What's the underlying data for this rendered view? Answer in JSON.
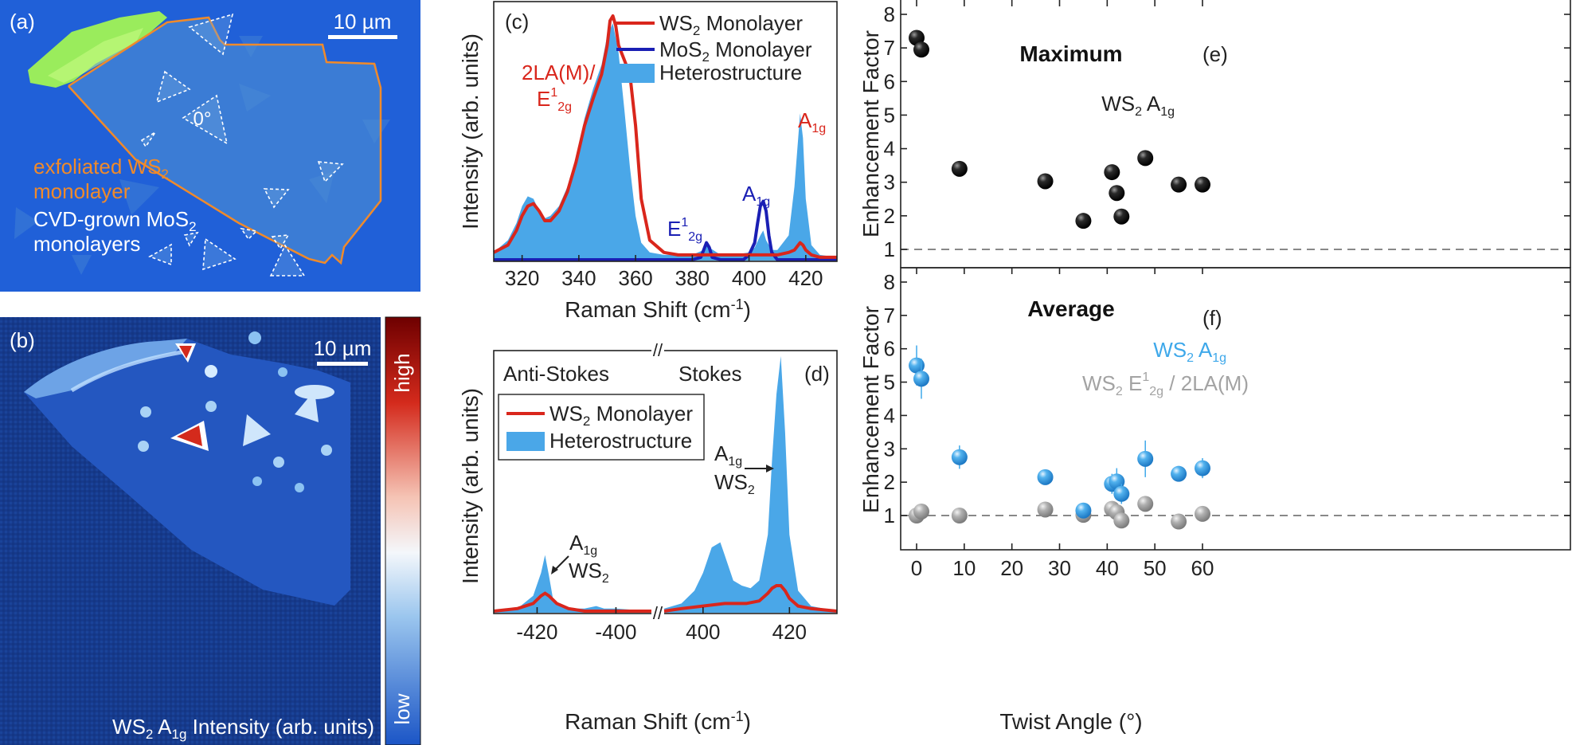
{
  "panels": {
    "a": {
      "label": "(a)",
      "scalebar": "10 µm",
      "angle_label": "0°",
      "annotation_ws2_line1": "exfoliated WS",
      "annotation_ws2_sub": "2",
      "annotation_ws2_line2": "monolayer",
      "annotation_mos2_line1": "CVD-grown MoS",
      "annotation_mos2_sub": "2",
      "annotation_mos2_line2": "monolayers",
      "colors": {
        "background": "#1f5fd9",
        "ws2_outline": "#f08a2a",
        "mos2_outline": "#ffffff",
        "green_flake": "#9ff05a"
      }
    },
    "b": {
      "label": "(b)",
      "scalebar": "10 µm",
      "caption_main": "WS",
      "caption_sub1": "2",
      "caption_mid": " A",
      "caption_sub2": "1g",
      "caption_end": " Intensity (arb. units)",
      "colorbar_high": "high",
      "colorbar_low": "low",
      "colors": {
        "low": "#1c56c8",
        "mid": "#ffffff",
        "high": "#7a0000"
      }
    }
  },
  "chart_data": [
    {
      "id": "c",
      "panel_label": "(c)",
      "type": "line",
      "title": "",
      "xlabel": "Raman Shift (cm",
      "xlabel_sup": "-1",
      "xlabel_end": ")",
      "ylabel": "Intensity (arb. units)",
      "xlim": [
        310,
        431
      ],
      "xticks": [
        320,
        340,
        360,
        380,
        400,
        420
      ],
      "legend_position": "top-right",
      "legend": [
        {
          "name": "WS",
          "sub": "2",
          "rest": " Monolayer",
          "color": "#d9261c",
          "kind": "line"
        },
        {
          "name": "MoS",
          "sub": "2",
          "rest": " Monolayer",
          "color": "#1a1fb4",
          "kind": "line"
        },
        {
          "name": "Heterostructure",
          "sub": "",
          "rest": "",
          "color": "#4aa7e8",
          "kind": "fill"
        }
      ],
      "annotations": [
        {
          "text": "2LA(M)/",
          "color": "#d9261c"
        },
        {
          "text": "E",
          "sup": "1",
          "sub": "2g",
          "color": "#d9261c"
        },
        {
          "text": "A",
          "sub": "1g",
          "color": "#d9261c"
        },
        {
          "text": "A",
          "sub": "1g",
          "color": "#1a1fb4"
        },
        {
          "text": "E",
          "sup": "1",
          "sub": "2g",
          "color": "#1a1fb4"
        }
      ],
      "series": [
        {
          "name": "Heterostructure",
          "x": [
            310,
            315,
            318,
            320,
            322,
            324,
            326,
            328,
            330,
            333,
            336,
            339,
            342,
            345,
            348,
            350,
            352,
            354,
            356,
            358,
            360,
            362,
            365,
            370,
            375,
            380,
            384,
            385,
            386,
            390,
            395,
            400,
            402,
            404,
            405,
            406,
            408,
            410,
            414,
            416,
            418,
            419,
            420,
            422,
            425,
            431
          ],
          "y": [
            0.03,
            0.08,
            0.15,
            0.22,
            0.26,
            0.25,
            0.2,
            0.17,
            0.18,
            0.22,
            0.3,
            0.42,
            0.58,
            0.7,
            0.8,
            0.92,
            0.97,
            0.85,
            0.62,
            0.38,
            0.18,
            0.07,
            0.03,
            0.02,
            0.02,
            0.02,
            0.04,
            0.07,
            0.05,
            0.02,
            0.02,
            0.03,
            0.05,
            0.1,
            0.12,
            0.08,
            0.04,
            0.04,
            0.1,
            0.3,
            0.6,
            0.5,
            0.25,
            0.06,
            0.02,
            0.01
          ]
        },
        {
          "name": "WS2 Monolayer",
          "x": [
            310,
            315,
            318,
            320,
            322,
            324,
            326,
            328,
            330,
            333,
            336,
            339,
            342,
            345,
            348,
            350,
            351,
            352,
            353,
            354,
            356,
            358,
            360,
            362,
            365,
            370,
            375,
            380,
            385,
            390,
            395,
            400,
            405,
            410,
            414,
            416,
            418,
            419,
            420,
            422,
            425,
            431
          ],
          "y": [
            0.03,
            0.06,
            0.12,
            0.18,
            0.22,
            0.23,
            0.2,
            0.16,
            0.16,
            0.2,
            0.28,
            0.4,
            0.55,
            0.66,
            0.76,
            0.88,
            0.98,
            1.0,
            0.96,
            0.88,
            0.82,
            0.76,
            0.55,
            0.25,
            0.08,
            0.03,
            0.02,
            0.02,
            0.02,
            0.02,
            0.02,
            0.02,
            0.02,
            0.02,
            0.03,
            0.04,
            0.07,
            0.06,
            0.04,
            0.02,
            0.01,
            0.01
          ]
        },
        {
          "name": "MoS2 Monolayer",
          "x": [
            310,
            370,
            380,
            383,
            384,
            385,
            386,
            387,
            390,
            398,
            400,
            402,
            403,
            404,
            405,
            406,
            407,
            408,
            410,
            431
          ],
          "y": [
            0.0,
            0.0,
            0.0,
            0.01,
            0.04,
            0.07,
            0.05,
            0.01,
            0.0,
            0.0,
            0.02,
            0.07,
            0.15,
            0.22,
            0.24,
            0.2,
            0.1,
            0.03,
            0.0,
            0.0
          ]
        }
      ]
    },
    {
      "id": "d",
      "panel_label": "(d)",
      "type": "line",
      "xlabel": "Raman Shift (cm",
      "xlabel_sup": "-1",
      "xlabel_end": ")",
      "ylabel": "Intensity (arb. units)",
      "xticks": [
        -420,
        -400,
        400,
        420
      ],
      "xlim_left": [
        -431,
        -391
      ],
      "xlim_right": [
        391,
        431
      ],
      "axis_break": "//",
      "region_labels": [
        "Anti-Stokes",
        "Stokes"
      ],
      "legend_position": "middle-left",
      "legend": [
        {
          "name": "WS",
          "sub": "2",
          "rest": " Monolayer",
          "color": "#d9261c",
          "kind": "line"
        },
        {
          "name": "Heterostructure",
          "sub": "",
          "rest": "",
          "color": "#4aa7e8",
          "kind": "fill"
        }
      ],
      "annotations": [
        {
          "text": "A",
          "sub": "1g",
          "line2": "WS",
          "line2_sub": "2",
          "at": "anti-stokes"
        },
        {
          "text": "A",
          "sub": "1g",
          "line2": "WS",
          "line2_sub": "2",
          "at": "stokes"
        }
      ],
      "series": [
        {
          "name": "Heterostructure",
          "x": [
            -431,
            -425,
            -421,
            -419,
            -418,
            -417,
            -416,
            -414,
            -411,
            -408,
            -405,
            -403,
            -400,
            -391,
            391,
            395,
            398,
            400,
            402,
            404,
            405,
            407,
            409,
            411,
            413,
            415,
            416,
            417,
            418,
            419,
            420,
            422,
            425,
            431
          ],
          "y": [
            0.0,
            0.01,
            0.06,
            0.15,
            0.22,
            0.14,
            0.05,
            0.02,
            0.01,
            0.01,
            0.02,
            0.01,
            0.01,
            0.0,
            0.01,
            0.03,
            0.08,
            0.15,
            0.25,
            0.27,
            0.22,
            0.12,
            0.1,
            0.09,
            0.12,
            0.3,
            0.6,
            0.85,
            1.0,
            0.7,
            0.3,
            0.08,
            0.02,
            0.0
          ]
        },
        {
          "name": "WS2 Monolayer",
          "x": [
            -431,
            -425,
            -421,
            -419,
            -418,
            -417,
            -415,
            -412,
            -408,
            -400,
            -391,
            391,
            395,
            400,
            405,
            410,
            413,
            415,
            416,
            417,
            418,
            419,
            420,
            422,
            425,
            431
          ],
          "y": [
            0.0,
            0.01,
            0.03,
            0.06,
            0.07,
            0.06,
            0.03,
            0.01,
            0.0,
            0.0,
            0.0,
            0.0,
            0.01,
            0.02,
            0.03,
            0.03,
            0.04,
            0.07,
            0.09,
            0.1,
            0.1,
            0.08,
            0.05,
            0.02,
            0.01,
            0.0
          ]
        }
      ]
    },
    {
      "id": "e",
      "panel_label": "(e)",
      "type": "scatter",
      "title": "Maximum",
      "series_label": "WS",
      "series_label_sub": "2",
      "series_label_rest": " A",
      "series_label_sub2": "1g",
      "ylabel": "Enhancement Factor",
      "ylim": [
        0.5,
        8.4
      ],
      "yticks": [
        1,
        2,
        3,
        4,
        5,
        6,
        7,
        8
      ],
      "reference_line": 1,
      "series": [
        {
          "name": "WS2 A1g",
          "color": "#111111",
          "points": [
            [
              0,
              7.3
            ],
            [
              1,
              6.95
            ],
            [
              9,
              3.4
            ],
            [
              27,
              3.03
            ],
            [
              35,
              1.85
            ],
            [
              41,
              3.3
            ],
            [
              42,
              2.68
            ],
            [
              43,
              1.98
            ],
            [
              48,
              3.72
            ],
            [
              55,
              2.93
            ],
            [
              60,
              2.93
            ]
          ]
        }
      ]
    },
    {
      "id": "f",
      "panel_label": "(f)",
      "type": "scatter",
      "title": "Average",
      "xlabel": "Twist Angle (°)",
      "ylabel": "Enhancement Factor",
      "xlim": [
        -4,
        64
      ],
      "xticks": [
        0,
        10,
        20,
        30,
        40,
        50,
        60
      ],
      "ylim": [
        0.5,
        8.4
      ],
      "yticks": [
        1,
        2,
        3,
        4,
        5,
        6,
        7,
        8
      ],
      "reference_line": 1,
      "legend_position": "right",
      "series": [
        {
          "name": "WS2 A1g",
          "label": "WS",
          "label_sub": "2",
          "label_rest": " A",
          "label_sub2": "1g",
          "color": "#3ea8ea",
          "points": [
            [
              0,
              5.5,
              0.3,
              0.6
            ],
            [
              1,
              5.1,
              0.6,
              0.6
            ],
            [
              9,
              2.75,
              0.8,
              0.35
            ],
            [
              27,
              2.15,
              1.2,
              0.2
            ],
            [
              35,
              1.15,
              0.8,
              0.2
            ],
            [
              41,
              1.95,
              1.0,
              0.3
            ],
            [
              42,
              2.02,
              1.0,
              0.4
            ],
            [
              43,
              1.65,
              0.8,
              0.3
            ],
            [
              48,
              2.7,
              0.8,
              0.55
            ],
            [
              55,
              2.25,
              1.2,
              0.2
            ],
            [
              60,
              2.42,
              1.5,
              0.3
            ]
          ]
        },
        {
          "name": "WS2 E12g / 2LA(M)",
          "label": "WS",
          "label_sub": "2",
          "label_rest": " E",
          "label_sup": "1",
          "label_sub2": "2g",
          "label_end": " / 2LA(M)",
          "color": "#a3a3a3",
          "points": [
            [
              0,
              1.0,
              0,
              0
            ],
            [
              1,
              1.12,
              0,
              0
            ],
            [
              9,
              1.0,
              0,
              0
            ],
            [
              27,
              1.18,
              0,
              0
            ],
            [
              35,
              1.02,
              0,
              0
            ],
            [
              41,
              1.2,
              0,
              0
            ],
            [
              42,
              1.1,
              0,
              0
            ],
            [
              43,
              0.85,
              0,
              0
            ],
            [
              48,
              1.35,
              0,
              0
            ],
            [
              55,
              0.82,
              0,
              0
            ],
            [
              60,
              1.05,
              0,
              0
            ]
          ]
        }
      ]
    }
  ]
}
